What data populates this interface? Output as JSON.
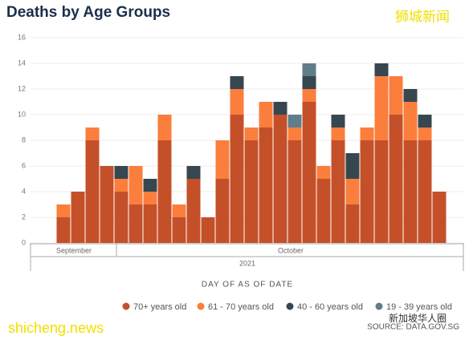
{
  "chart_data": {
    "type": "stacked_bar",
    "title": "Deaths by Age Groups",
    "x_label": "DAY OF AS OF DATE",
    "x_groups": [
      "September",
      "October"
    ],
    "x_year": "2021",
    "categories": [
      null,
      null,
      null,
      null,
      null,
      null,
      null,
      null,
      null,
      null,
      null,
      null,
      null,
      null,
      null,
      null,
      null,
      null,
      null,
      null,
      null,
      null,
      null,
      null,
      null,
      null,
      null
    ],
    "series": [
      {
        "name": "70+ years old",
        "color": "#c4502a",
        "values": [
          2,
          4,
          8,
          6,
          4,
          3,
          3,
          8,
          2,
          5,
          2,
          5,
          10,
          8,
          9,
          10,
          8,
          11,
          5,
          8,
          3,
          8,
          8,
          10,
          8,
          8,
          4
        ]
      },
      {
        "name": "61 - 70 years old",
        "color": "#fb7e3c",
        "values": [
          1,
          0,
          1,
          0,
          1,
          3,
          1,
          2,
          1,
          0,
          0,
          3,
          2,
          1,
          2,
          0,
          1,
          1,
          1,
          1,
          2,
          1,
          5,
          3,
          3,
          1,
          0
        ]
      },
      {
        "name": "40 - 60 years old",
        "color": "#37474f",
        "values": [
          0,
          0,
          0,
          0,
          1,
          0,
          1,
          0,
          0,
          1,
          0,
          0,
          1,
          0,
          0,
          1,
          0,
          1,
          0,
          1,
          2,
          0,
          1,
          0,
          1,
          1,
          0
        ]
      },
      {
        "name": "19 - 39 years old",
        "color": "#607d8b",
        "values": [
          0,
          0,
          0,
          0,
          0,
          0,
          0,
          0,
          0,
          0,
          0,
          0,
          0,
          0,
          0,
          0,
          1,
          1,
          0,
          0,
          0,
          0,
          0,
          0,
          0,
          0,
          0
        ]
      }
    ],
    "ylim": [
      0,
      16
    ],
    "yticks": [
      0,
      2,
      4,
      6,
      8,
      10,
      12,
      14,
      16
    ],
    "grid": true,
    "legend": "bottom"
  },
  "watermarks": {
    "top_right": "狮城新闻",
    "bottom_left": "shicheng.news",
    "bottom_right": "新加坡华人圈",
    "source": "SOURCE: DATA.GOV.SG"
  }
}
